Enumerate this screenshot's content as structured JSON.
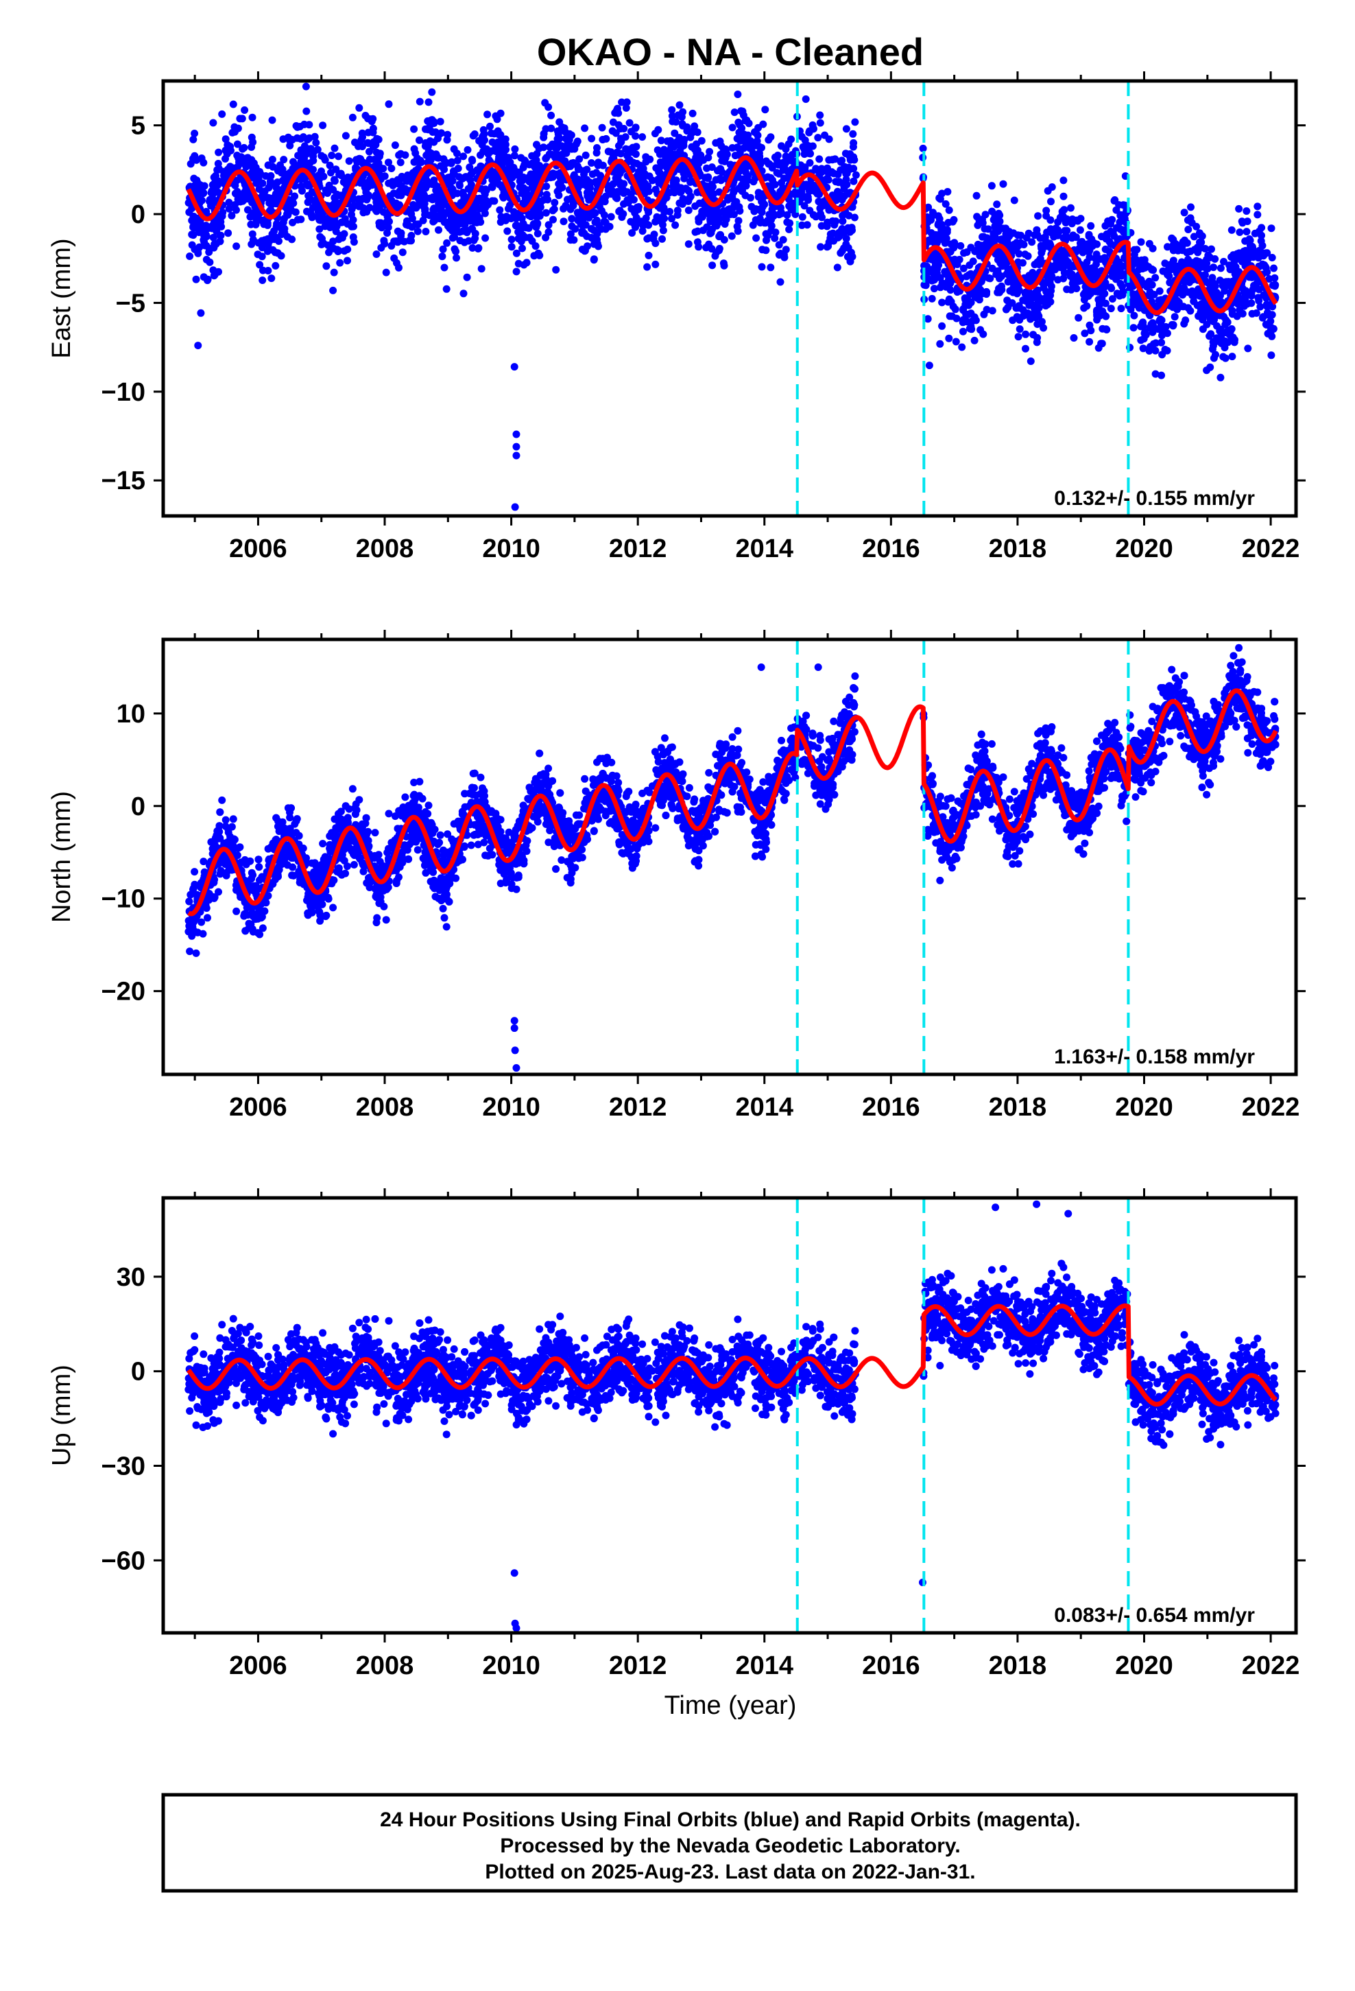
{
  "figure": {
    "title": "OKAO  - NA - Cleaned",
    "xlabel": "Time (year)",
    "footer": [
      "24 Hour Positions Using Final Orbits (blue) and Rapid Orbits (magenta).",
      "Processed by the Nevada Geodetic Laboratory.",
      "Plotted on 2025-Aug-23. Last data on 2022-Jan-31."
    ]
  },
  "colors": {
    "points": "#0000ff",
    "model": "#ff0000",
    "event_lines": "#00e5ee"
  },
  "chart_data": [
    {
      "type": "scatter",
      "title": "",
      "xlabel": "",
      "ylabel": "East (mm)",
      "xlim": [
        2004.5,
        2022.4
      ],
      "ylim": [
        -17,
        7.5
      ],
      "xticks": [
        2006,
        2008,
        2010,
        2012,
        2014,
        2016,
        2018,
        2020,
        2022
      ],
      "yticks": [
        5,
        0,
        -5,
        -10,
        -15
      ],
      "ytick_labels": [
        "5",
        "0",
        "−5",
        "−10",
        "−15"
      ],
      "rate_text": "0.132+/- 0.155 mm/yr",
      "event_lines": [
        2014.52,
        2016.52,
        2019.75
      ],
      "data_gap": [
        2015.45,
        2016.5
      ],
      "model": {
        "segments": [
          {
            "start": 2004.9,
            "end": 2014.52,
            "offset": 1.0,
            "slope": 0.1,
            "amplitude": 1.3,
            "phase": 0.45
          },
          {
            "start": 2014.52,
            "end": 2016.52,
            "offset": 1.2,
            "slope": 0.1,
            "amplitude": 1.0,
            "phase": 0.45
          },
          {
            "start": 2016.52,
            "end": 2019.75,
            "offset": -3.1,
            "slope": 0.1,
            "amplitude": 1.2,
            "phase": 0.45
          },
          {
            "start": 2019.75,
            "end": 2022.08,
            "offset": -4.4,
            "slope": 0.1,
            "amplitude": 1.2,
            "phase": 0.45
          }
        ]
      },
      "scatter": {
        "start": 2004.9,
        "end": 2022.08,
        "noise": 1.6,
        "points": 4300
      },
      "outliers": [
        [
          2005.05,
          -7.4
        ],
        [
          2010.05,
          -8.6
        ],
        [
          2010.08,
          -12.4
        ],
        [
          2010.08,
          -13.1
        ],
        [
          2010.08,
          -13.6
        ],
        [
          2010.06,
          -16.5
        ]
      ]
    },
    {
      "type": "scatter",
      "title": "",
      "xlabel": "",
      "ylabel": "North (mm)",
      "xlim": [
        2004.5,
        2022.4
      ],
      "ylim": [
        -29,
        18
      ],
      "xticks": [
        2006,
        2008,
        2010,
        2012,
        2014,
        2016,
        2018,
        2020,
        2022
      ],
      "yticks": [
        10,
        0,
        -10,
        -20
      ],
      "ytick_labels": [
        "10",
        "0",
        "−10",
        "−20"
      ],
      "rate_text": "1.163+/- 0.158 mm/yr",
      "event_lines": [
        2014.52,
        2016.52,
        2019.75
      ],
      "data_gap": [
        2015.45,
        2016.5
      ],
      "model": {
        "segments": [
          {
            "start": 2004.9,
            "end": 2014.52,
            "offset": -8.5,
            "slope": 1.15,
            "amplitude": 3.2,
            "phase": 0.2
          },
          {
            "start": 2014.52,
            "end": 2016.52,
            "offset": 5.5,
            "slope": 1.15,
            "amplitude": 3.0,
            "phase": 0.2
          },
          {
            "start": 2016.52,
            "end": 2019.75,
            "offset": -0.8,
            "slope": 1.15,
            "amplitude": 3.5,
            "phase": 0.2
          },
          {
            "start": 2019.75,
            "end": 2022.08,
            "offset": 7.5,
            "slope": 1.15,
            "amplitude": 3.0,
            "phase": 0.2
          }
        ]
      },
      "scatter": {
        "start": 2004.9,
        "end": 2022.08,
        "noise": 1.8,
        "points": 4300
      },
      "outliers": [
        [
          2010.05,
          -23.2
        ],
        [
          2010.05,
          -24.0
        ],
        [
          2010.06,
          -26.4
        ],
        [
          2010.08,
          -28.3
        ],
        [
          2013.95,
          15.0
        ],
        [
          2014.85,
          15.0
        ],
        [
          2013.95,
          -5.2
        ]
      ]
    },
    {
      "type": "scatter",
      "title": "",
      "xlabel": "Time (year)",
      "ylabel": "Up (mm)",
      "xlim": [
        2004.5,
        2022.4
      ],
      "ylim": [
        -83,
        55
      ],
      "xticks": [
        2006,
        2008,
        2010,
        2012,
        2014,
        2016,
        2018,
        2020,
        2022
      ],
      "yticks": [
        30,
        0,
        -30,
        -60
      ],
      "ytick_labels": [
        "30",
        "0",
        "−30",
        "−60"
      ],
      "rate_text": "0.083+/- 0.654 mm/yr",
      "event_lines": [
        2014.52,
        2016.52,
        2019.75
      ],
      "data_gap": [
        2015.45,
        2016.5
      ],
      "model": {
        "segments": [
          {
            "start": 2004.9,
            "end": 2014.52,
            "offset": -1.0,
            "slope": 0.08,
            "amplitude": 4.5,
            "phase": 0.45
          },
          {
            "start": 2014.52,
            "end": 2016.52,
            "offset": -0.5,
            "slope": 0.08,
            "amplitude": 4.5,
            "phase": 0.45
          },
          {
            "start": 2016.52,
            "end": 2019.75,
            "offset": 16.0,
            "slope": 0.08,
            "amplitude": 4.5,
            "phase": 0.45
          },
          {
            "start": 2019.75,
            "end": 2022.08,
            "offset": -6.0,
            "slope": 0.08,
            "amplitude": 4.5,
            "phase": 0.45
          }
        ]
      },
      "scatter": {
        "start": 2004.9,
        "end": 2022.08,
        "noise": 5.5,
        "points": 4300
      },
      "outliers": [
        [
          2010.05,
          -64.0
        ],
        [
          2010.06,
          -80.0
        ],
        [
          2010.08,
          -81.5
        ],
        [
          2016.5,
          -67.0
        ],
        [
          2018.3,
          53.0
        ],
        [
          2017.65,
          52.0
        ],
        [
          2018.8,
          50.0
        ]
      ]
    }
  ]
}
